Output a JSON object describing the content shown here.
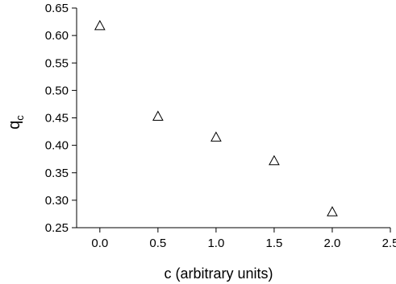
{
  "chart_data": {
    "type": "scatter",
    "title": "",
    "xlabel": "c (arbitrary units)",
    "ylabel": {
      "main": "q",
      "subscript": "c"
    },
    "xlim": [
      -0.2,
      2.5
    ],
    "ylim": [
      0.25,
      0.65
    ],
    "xticks": [
      "0.0",
      "0.5",
      "1.0",
      "1.5",
      "2.0",
      "2.5"
    ],
    "xtick_values": [
      0.0,
      0.5,
      1.0,
      1.5,
      2.0,
      2.5
    ],
    "yticks": [
      "0.25",
      "0.30",
      "0.35",
      "0.40",
      "0.45",
      "0.50",
      "0.55",
      "0.60",
      "0.65"
    ],
    "ytick_values": [
      0.25,
      0.3,
      0.35,
      0.4,
      0.45,
      0.5,
      0.55,
      0.6,
      0.65
    ],
    "grid": false,
    "marker": "open-triangle",
    "series": [
      {
        "x": [
          0.0,
          0.5,
          1.0,
          1.5,
          2.0
        ],
        "y": [
          0.618,
          0.453,
          0.415,
          0.372,
          0.279
        ]
      }
    ]
  }
}
